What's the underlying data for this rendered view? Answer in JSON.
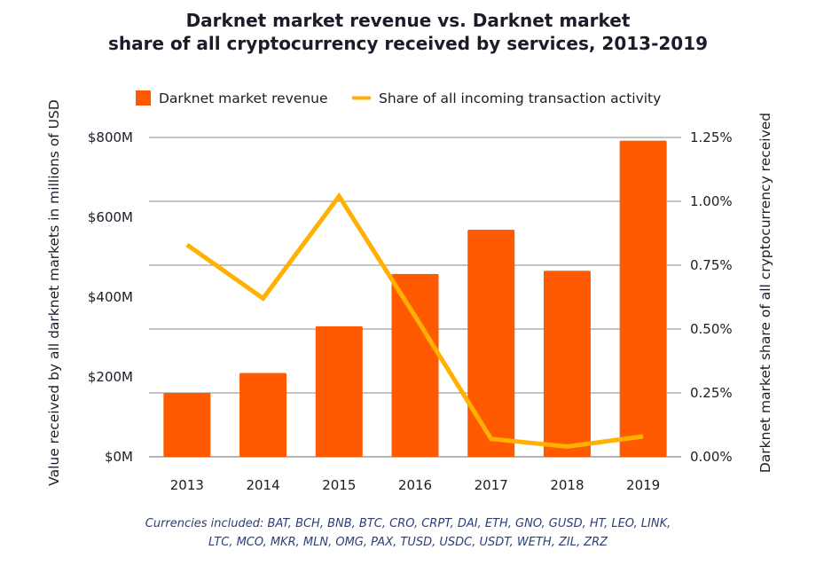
{
  "chart_data": {
    "type": "bar",
    "title_lines": [
      "Darknet market revenue vs. Darknet market",
      "share of all cryptocurrency received by services, 2013-2019"
    ],
    "categories": [
      "2013",
      "2014",
      "2015",
      "2016",
      "2017",
      "2018",
      "2019"
    ],
    "series": [
      {
        "name": "Darknet market revenue",
        "type": "bar",
        "axis": "left",
        "color": "#ff5a00",
        "values": [
          160,
          210,
          327,
          458,
          569,
          466,
          792
        ]
      },
      {
        "name": "Share of all incoming transaction activity",
        "type": "line",
        "axis": "right",
        "color": "#ffb000",
        "values": [
          0.83,
          0.62,
          1.02,
          0.55,
          0.07,
          0.04,
          0.08
        ]
      }
    ],
    "ylabel_left": "Value received by all darknet markets in millions of USD",
    "ylabel_right": "Darknet market share of all cryptocurrency received",
    "ylim_left": [
      0,
      800
    ],
    "ylim_right": [
      0,
      1.25
    ],
    "yticks_left": [
      "$0M",
      "$200M",
      "$400M",
      "$600M",
      "$800M"
    ],
    "yticks_right": [
      "0.00%",
      "0.25%",
      "0.50%",
      "0.75%",
      "1.00%",
      "1.25%"
    ],
    "grid": true,
    "legend_position": "top",
    "footnote_lines": [
      "Currencies included: BAT, BCH, BNB, BTC, CRO, CRPT, DAI, ETH, GNO, GUSD, HT, LEO, LINK,",
      "LTC, MCO, MKR, MLN, OMG, PAX, TUSD, USDC, USDT, WETH, ZIL, ZRZ"
    ],
    "gridline_color": "#8a8a8a",
    "text_color": "#1b1b2a",
    "footnote_color": "#2c3e7a"
  }
}
